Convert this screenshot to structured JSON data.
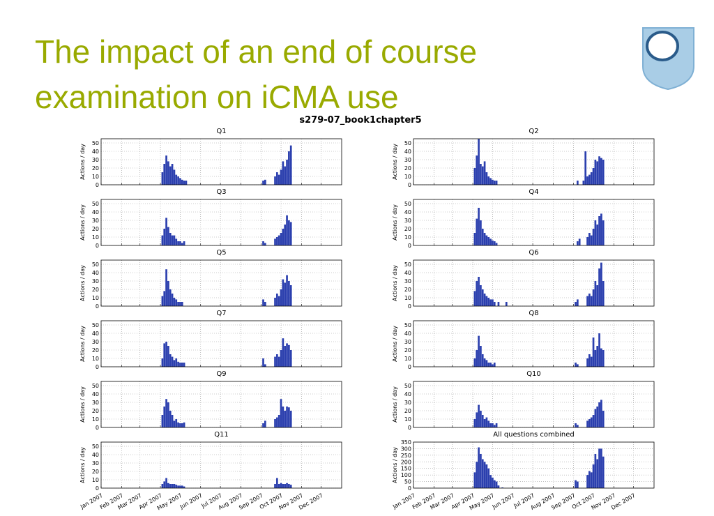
{
  "header": {
    "title_line1": "The impact of an end of course",
    "title_line2": "examination on iCMA use"
  },
  "figure_title": "s279-07_book1chapter5",
  "chart_data": [
    {
      "type": "bar",
      "title": "Q1",
      "ylabel": "Actions / day",
      "color": "#2b3fae",
      "grid": true,
      "xlim": [
        0,
        365
      ],
      "xticks": [
        0,
        31,
        59,
        90,
        120,
        151,
        181,
        212,
        243,
        273,
        304,
        334
      ],
      "ylim": [
        0,
        55
      ],
      "yticks": [
        0,
        10,
        20,
        30,
        40,
        50
      ],
      "x": [
        93,
        96,
        99,
        102,
        105,
        108,
        111,
        114,
        117,
        120,
        123,
        126,
        129,
        132,
        135,
        138,
        141,
        246,
        249,
        252,
        255,
        258,
        261,
        264,
        267,
        270,
        273,
        276,
        279,
        282,
        285,
        288
      ],
      "values": [
        15,
        25,
        35,
        28,
        22,
        25,
        18,
        12,
        10,
        8,
        6,
        5,
        5,
        0,
        0,
        0,
        0,
        5,
        6,
        0,
        0,
        0,
        0,
        10,
        15,
        12,
        18,
        28,
        22,
        30,
        40,
        47
      ]
    },
    {
      "type": "bar",
      "title": "Q2",
      "ylabel": "Actions / day",
      "color": "#2b3fae",
      "grid": true,
      "xlim": [
        0,
        365
      ],
      "xticks": [
        0,
        31,
        59,
        90,
        120,
        151,
        181,
        212,
        243,
        273,
        304,
        334
      ],
      "ylim": [
        0,
        55
      ],
      "yticks": [
        0,
        10,
        20,
        30,
        40,
        50
      ],
      "x": [
        93,
        96,
        99,
        102,
        105,
        108,
        111,
        114,
        117,
        120,
        123,
        126,
        129,
        132,
        135,
        138,
        141,
        246,
        249,
        252,
        255,
        258,
        261,
        264,
        267,
        270,
        273,
        276,
        279,
        282,
        285,
        288
      ],
      "values": [
        20,
        35,
        55,
        25,
        22,
        28,
        15,
        10,
        8,
        6,
        5,
        5,
        0,
        0,
        0,
        0,
        0,
        0,
        5,
        0,
        0,
        5,
        40,
        10,
        12,
        15,
        20,
        30,
        28,
        34,
        32,
        30
      ]
    },
    {
      "type": "bar",
      "title": "Q3",
      "ylabel": "Actions / day",
      "color": "#2b3fae",
      "grid": true,
      "xlim": [
        0,
        365
      ],
      "xticks": [
        0,
        31,
        59,
        90,
        120,
        151,
        181,
        212,
        243,
        273,
        304,
        334
      ],
      "ylim": [
        0,
        55
      ],
      "yticks": [
        0,
        10,
        20,
        30,
        40,
        50
      ],
      "x": [
        93,
        96,
        99,
        102,
        105,
        108,
        111,
        114,
        117,
        120,
        123,
        126,
        129,
        132,
        135,
        138,
        141,
        246,
        249,
        252,
        255,
        258,
        261,
        264,
        267,
        270,
        273,
        276,
        279,
        282,
        285,
        288
      ],
      "values": [
        12,
        20,
        33,
        22,
        15,
        12,
        12,
        8,
        5,
        5,
        3,
        5,
        0,
        0,
        0,
        0,
        0,
        5,
        3,
        0,
        0,
        0,
        0,
        8,
        10,
        12,
        15,
        20,
        25,
        36,
        30,
        28
      ]
    },
    {
      "type": "bar",
      "title": "Q4",
      "ylabel": "Actions / day",
      "color": "#2b3fae",
      "grid": true,
      "xlim": [
        0,
        365
      ],
      "xticks": [
        0,
        31,
        59,
        90,
        120,
        151,
        181,
        212,
        243,
        273,
        304,
        334
      ],
      "ylim": [
        0,
        55
      ],
      "yticks": [
        0,
        10,
        20,
        30,
        40,
        50
      ],
      "x": [
        93,
        96,
        99,
        102,
        105,
        108,
        111,
        114,
        117,
        120,
        123,
        126,
        129,
        132,
        135,
        138,
        141,
        246,
        249,
        252,
        255,
        258,
        261,
        264,
        267,
        270,
        273,
        276,
        279,
        282,
        285,
        288
      ],
      "values": [
        15,
        32,
        45,
        30,
        20,
        15,
        12,
        10,
        8,
        6,
        5,
        3,
        0,
        0,
        0,
        0,
        0,
        0,
        5,
        8,
        0,
        0,
        0,
        10,
        15,
        12,
        20,
        30,
        25,
        35,
        38,
        30
      ]
    },
    {
      "type": "bar",
      "title": "Q5",
      "ylabel": "Actions / day",
      "color": "#2b3fae",
      "grid": true,
      "xlim": [
        0,
        365
      ],
      "xticks": [
        0,
        31,
        59,
        90,
        120,
        151,
        181,
        212,
        243,
        273,
        304,
        334
      ],
      "ylim": [
        0,
        55
      ],
      "yticks": [
        0,
        10,
        20,
        30,
        40,
        50
      ],
      "x": [
        93,
        96,
        99,
        102,
        105,
        108,
        111,
        114,
        117,
        120,
        123,
        126,
        129,
        132,
        135,
        138,
        141,
        246,
        249,
        252,
        255,
        258,
        261,
        264,
        267,
        270,
        273,
        276,
        279,
        282,
        285,
        288
      ],
      "values": [
        12,
        18,
        44,
        30,
        20,
        15,
        10,
        8,
        5,
        5,
        5,
        0,
        0,
        0,
        0,
        0,
        0,
        8,
        5,
        0,
        0,
        0,
        0,
        10,
        15,
        12,
        20,
        32,
        28,
        37,
        30,
        25
      ]
    },
    {
      "type": "bar",
      "title": "Q6",
      "ylabel": "Actions / day",
      "color": "#2b3fae",
      "grid": true,
      "xlim": [
        0,
        365
      ],
      "xticks": [
        0,
        31,
        59,
        90,
        120,
        151,
        181,
        212,
        243,
        273,
        304,
        334
      ],
      "ylim": [
        0,
        55
      ],
      "yticks": [
        0,
        10,
        20,
        30,
        40,
        50
      ],
      "x": [
        93,
        96,
        99,
        102,
        105,
        108,
        111,
        114,
        117,
        120,
        123,
        126,
        129,
        132,
        135,
        138,
        141,
        246,
        249,
        252,
        255,
        258,
        261,
        264,
        267,
        270,
        273,
        276,
        279,
        282,
        285,
        288
      ],
      "values": [
        18,
        30,
        35,
        25,
        20,
        15,
        12,
        10,
        8,
        8,
        5,
        0,
        5,
        0,
        0,
        0,
        5,
        5,
        8,
        0,
        0,
        0,
        0,
        12,
        15,
        12,
        20,
        30,
        25,
        45,
        52,
        30
      ]
    },
    {
      "type": "bar",
      "title": "Q7",
      "ylabel": "Actions / day",
      "color": "#2b3fae",
      "grid": true,
      "xlim": [
        0,
        365
      ],
      "xticks": [
        0,
        31,
        59,
        90,
        120,
        151,
        181,
        212,
        243,
        273,
        304,
        334
      ],
      "ylim": [
        0,
        55
      ],
      "yticks": [
        0,
        10,
        20,
        30,
        40,
        50
      ],
      "x": [
        93,
        96,
        99,
        102,
        105,
        108,
        111,
        114,
        117,
        120,
        123,
        126,
        129,
        132,
        135,
        138,
        141,
        246,
        249,
        252,
        255,
        258,
        261,
        264,
        267,
        270,
        273,
        276,
        279,
        282,
        285,
        288
      ],
      "values": [
        10,
        28,
        30,
        25,
        15,
        12,
        8,
        10,
        6,
        5,
        5,
        5,
        0,
        0,
        0,
        0,
        0,
        10,
        3,
        0,
        0,
        0,
        0,
        12,
        15,
        12,
        20,
        34,
        25,
        28,
        26,
        20
      ]
    },
    {
      "type": "bar",
      "title": "Q8",
      "ylabel": "Actions / day",
      "color": "#2b3fae",
      "grid": true,
      "xlim": [
        0,
        365
      ],
      "xticks": [
        0,
        31,
        59,
        90,
        120,
        151,
        181,
        212,
        243,
        273,
        304,
        334
      ],
      "ylim": [
        0,
        55
      ],
      "yticks": [
        0,
        10,
        20,
        30,
        40,
        50
      ],
      "x": [
        93,
        96,
        99,
        102,
        105,
        108,
        111,
        114,
        117,
        120,
        123,
        126,
        129,
        132,
        135,
        138,
        141,
        246,
        249,
        252,
        255,
        258,
        261,
        264,
        267,
        270,
        273,
        276,
        279,
        282,
        285,
        288
      ],
      "values": [
        10,
        20,
        37,
        25,
        15,
        10,
        8,
        5,
        5,
        3,
        5,
        0,
        0,
        0,
        0,
        0,
        0,
        5,
        3,
        0,
        0,
        0,
        0,
        10,
        15,
        12,
        35,
        20,
        25,
        40,
        22,
        20
      ]
    },
    {
      "type": "bar",
      "title": "Q9",
      "ylabel": "Actions / day",
      "color": "#2b3fae",
      "grid": true,
      "xlim": [
        0,
        365
      ],
      "xticks": [
        0,
        31,
        59,
        90,
        120,
        151,
        181,
        212,
        243,
        273,
        304,
        334
      ],
      "ylim": [
        0,
        55
      ],
      "yticks": [
        0,
        10,
        20,
        30,
        40,
        50
      ],
      "x": [
        93,
        96,
        99,
        102,
        105,
        108,
        111,
        114,
        117,
        120,
        123,
        126,
        129,
        132,
        135,
        138,
        141,
        246,
        249,
        252,
        255,
        258,
        261,
        264,
        267,
        270,
        273,
        276,
        279,
        282,
        285,
        288
      ],
      "values": [
        15,
        25,
        34,
        30,
        20,
        15,
        8,
        10,
        6,
        5,
        5,
        6,
        0,
        0,
        0,
        0,
        0,
        5,
        8,
        0,
        0,
        0,
        0,
        10,
        12,
        15,
        34,
        25,
        20,
        25,
        24,
        20
      ]
    },
    {
      "type": "bar",
      "title": "Q10",
      "ylabel": "Actions / day",
      "color": "#2b3fae",
      "grid": true,
      "xlim": [
        0,
        365
      ],
      "xticks": [
        0,
        31,
        59,
        90,
        120,
        151,
        181,
        212,
        243,
        273,
        304,
        334
      ],
      "ylim": [
        0,
        55
      ],
      "yticks": [
        0,
        10,
        20,
        30,
        40,
        50
      ],
      "x": [
        93,
        96,
        99,
        102,
        105,
        108,
        111,
        114,
        117,
        120,
        123,
        126,
        129,
        132,
        135,
        138,
        141,
        246,
        249,
        252,
        255,
        258,
        261,
        264,
        267,
        270,
        273,
        276,
        279,
        282,
        285,
        288
      ],
      "values": [
        10,
        18,
        27,
        20,
        15,
        10,
        12,
        8,
        5,
        5,
        3,
        5,
        0,
        0,
        0,
        0,
        0,
        5,
        3,
        0,
        0,
        0,
        0,
        8,
        10,
        12,
        15,
        22,
        25,
        30,
        33,
        20
      ]
    },
    {
      "type": "bar",
      "title": "Q11",
      "ylabel": "Actions / day",
      "color": "#2b3fae",
      "grid": true,
      "xlim": [
        0,
        365
      ],
      "xticks": [
        {
          "value": 0,
          "label": "Jan 2007"
        },
        {
          "value": 31,
          "label": "Feb 2007"
        },
        {
          "value": 59,
          "label": "Mar 2007"
        },
        {
          "value": 90,
          "label": "Apr 2007"
        },
        {
          "value": 120,
          "label": "May 2007"
        },
        {
          "value": 151,
          "label": "Jun 2007"
        },
        {
          "value": 181,
          "label": "Jul 2007"
        },
        {
          "value": 212,
          "label": "Aug 2007"
        },
        {
          "value": 243,
          "label": "Sep 2007"
        },
        {
          "value": 273,
          "label": "Oct 2007"
        },
        {
          "value": 304,
          "label": "Nov 2007"
        },
        {
          "value": 334,
          "label": "Dec 2007"
        }
      ],
      "ylim": [
        0,
        55
      ],
      "yticks": [
        0,
        10,
        20,
        30,
        40,
        50
      ],
      "x": [
        93,
        96,
        99,
        102,
        105,
        108,
        111,
        114,
        117,
        120,
        123,
        126,
        129,
        132,
        135,
        138,
        141,
        246,
        249,
        252,
        255,
        258,
        261,
        264,
        267,
        270,
        273,
        276,
        279,
        282,
        285,
        288
      ],
      "values": [
        5,
        8,
        12,
        6,
        5,
        5,
        5,
        4,
        3,
        3,
        3,
        2,
        0,
        0,
        0,
        0,
        0,
        0,
        0,
        0,
        0,
        0,
        0,
        5,
        12,
        5,
        6,
        5,
        5,
        6,
        5,
        4
      ]
    },
    {
      "type": "bar",
      "title": "All questions combined",
      "ylabel": "Actions / day",
      "color": "#2b3fae",
      "grid": true,
      "xlim": [
        0,
        365
      ],
      "xticks": [
        {
          "value": 0,
          "label": "Jan 2007"
        },
        {
          "value": 31,
          "label": "Feb 2007"
        },
        {
          "value": 59,
          "label": "Mar 2007"
        },
        {
          "value": 90,
          "label": "Apr 2007"
        },
        {
          "value": 120,
          "label": "May 2007"
        },
        {
          "value": 151,
          "label": "Jun 2007"
        },
        {
          "value": 181,
          "label": "Jul 2007"
        },
        {
          "value": 212,
          "label": "Aug 2007"
        },
        {
          "value": 243,
          "label": "Sep 2007"
        },
        {
          "value": 273,
          "label": "Oct 2007"
        },
        {
          "value": 304,
          "label": "Nov 2007"
        },
        {
          "value": 334,
          "label": "Dec 2007"
        }
      ],
      "ylim": [
        0,
        350
      ],
      "yticks": [
        0,
        50,
        100,
        150,
        200,
        250,
        300,
        350
      ],
      "x": [
        93,
        96,
        99,
        102,
        105,
        108,
        111,
        114,
        117,
        120,
        123,
        126,
        129,
        132,
        135,
        138,
        141,
        246,
        249,
        252,
        255,
        258,
        261,
        264,
        267,
        270,
        273,
        276,
        279,
        282,
        285,
        288
      ],
      "values": [
        120,
        200,
        310,
        260,
        220,
        200,
        180,
        150,
        100,
        80,
        60,
        50,
        20,
        0,
        5,
        0,
        0,
        60,
        50,
        0,
        0,
        0,
        0,
        100,
        130,
        120,
        180,
        260,
        220,
        300,
        300,
        240
      ]
    }
  ]
}
